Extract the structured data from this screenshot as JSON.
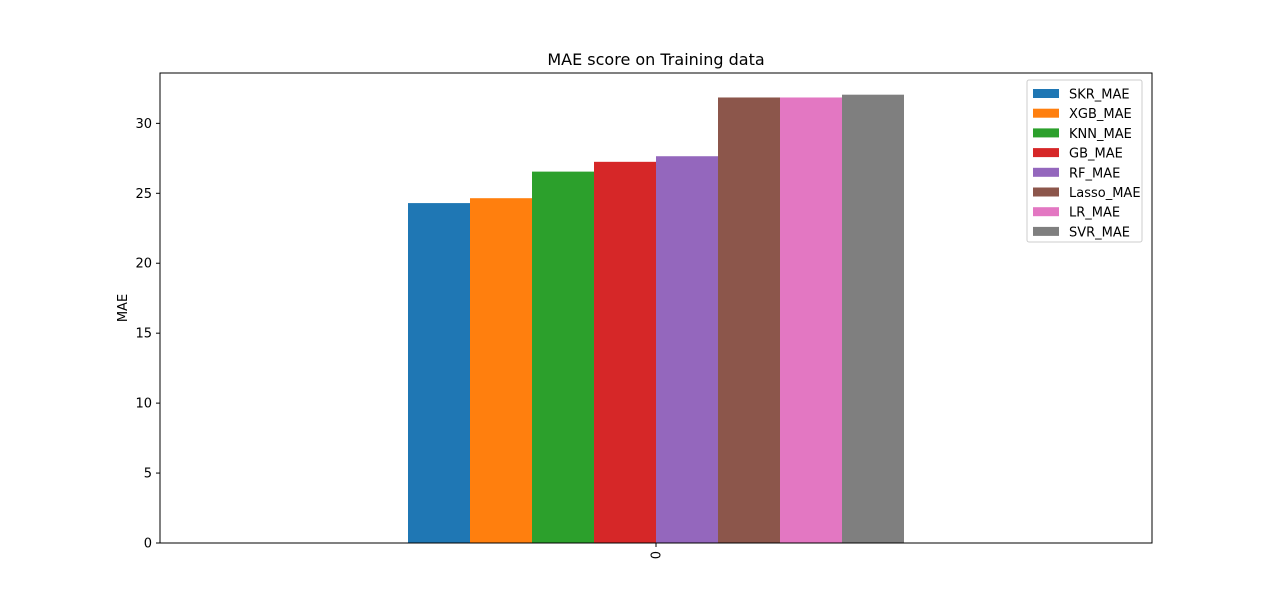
{
  "chart_data": {
    "type": "bar",
    "title": "MAE score on Training data",
    "xlabel": "",
    "ylabel": "MAE",
    "categories": [
      "0"
    ],
    "series": [
      {
        "name": "SKR_MAE",
        "values": [
          24.3
        ],
        "color": "#1f77b4"
      },
      {
        "name": "XGB_MAE",
        "values": [
          24.65
        ],
        "color": "#ff7f0e"
      },
      {
        "name": "KNN_MAE",
        "values": [
          26.55
        ],
        "color": "#2ca02c"
      },
      {
        "name": "GB_MAE",
        "values": [
          27.25
        ],
        "color": "#d62728"
      },
      {
        "name": "RF_MAE",
        "values": [
          27.65
        ],
        "color": "#9467bd"
      },
      {
        "name": "Lasso_MAE",
        "values": [
          31.85
        ],
        "color": "#8c564b"
      },
      {
        "name": "LR_MAE",
        "values": [
          31.85
        ],
        "color": "#e377c2"
      },
      {
        "name": "SVR_MAE",
        "values": [
          32.05
        ],
        "color": "#7f7f7f"
      }
    ],
    "ylim": [
      0,
      33.6
    ],
    "yticks": [
      "0",
      "5",
      "10",
      "15",
      "20",
      "25",
      "30"
    ],
    "legend_position": "top-right",
    "grid": false
  }
}
